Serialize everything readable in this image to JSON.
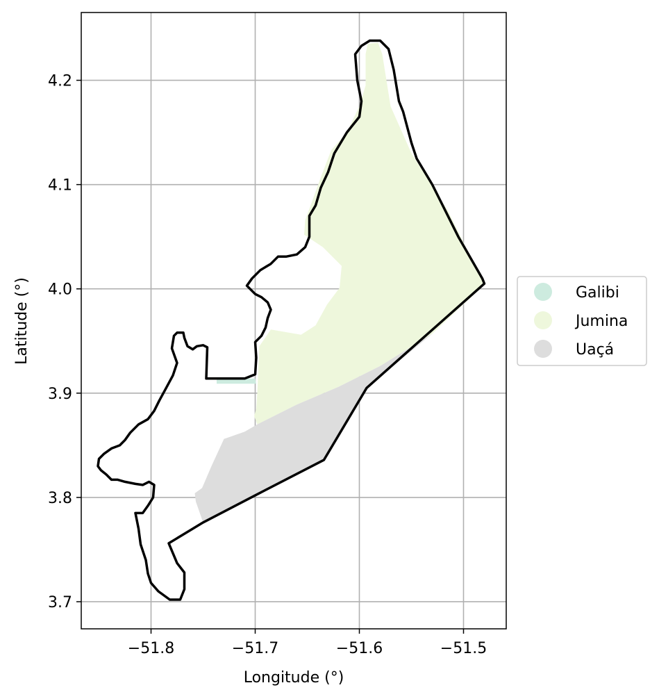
{
  "chart_data": {
    "type": "map",
    "xlabel": "Longitude (°)",
    "ylabel": "Latitude (°)",
    "xlim": [
      -51.867,
      -51.459
    ],
    "ylim": [
      3.674,
      4.265
    ],
    "grid": true,
    "x_ticks": [
      {
        "value": -51.8,
        "label": "−51.8"
      },
      {
        "value": -51.7,
        "label": "−51.7"
      },
      {
        "value": -51.6,
        "label": "−51.6"
      },
      {
        "value": -51.5,
        "label": "−51.5"
      }
    ],
    "y_ticks": [
      {
        "value": 3.7,
        "label": "3.7"
      },
      {
        "value": 3.8,
        "label": "3.8"
      },
      {
        "value": 3.9,
        "label": "3.9"
      },
      {
        "value": 4.0,
        "label": "4.0"
      },
      {
        "value": 4.1,
        "label": "4.1"
      },
      {
        "value": 4.2,
        "label": "4.2"
      }
    ],
    "legend_placement": "right",
    "series": [
      {
        "name": "Galibi",
        "color": "#cdebdf",
        "polygons": [
          [
            [
              -51.737,
              3.914
            ],
            [
              -51.7,
              3.914
            ],
            [
              -51.699,
              3.909
            ],
            [
              -51.737,
              3.909
            ]
          ]
        ]
      },
      {
        "name": "Jumina",
        "color": "#eef7dc",
        "polygons": [
          [
            [
              -51.592,
              4.235
            ],
            [
              -51.594,
              4.225
            ],
            [
              -51.594,
              4.195
            ],
            [
              -51.6,
              4.175
            ],
            [
              -51.612,
              4.15
            ],
            [
              -51.627,
              4.133
            ],
            [
              -51.637,
              4.107
            ],
            [
              -51.645,
              4.085
            ],
            [
              -51.652,
              4.066
            ],
            [
              -51.653,
              4.052
            ],
            [
              -51.635,
              4.04
            ],
            [
              -51.617,
              4.022
            ],
            [
              -51.619,
              4.001
            ],
            [
              -51.631,
              3.985
            ],
            [
              -51.642,
              3.965
            ],
            [
              -51.656,
              3.956
            ],
            [
              -51.685,
              3.961
            ],
            [
              -51.696,
              3.945
            ],
            [
              -51.698,
              3.9
            ],
            [
              -51.699,
              3.885
            ],
            [
              -51.701,
              3.878
            ],
            [
              -51.698,
              3.87
            ],
            [
              -51.66,
              3.889
            ],
            [
              -51.62,
              3.906
            ],
            [
              -51.58,
              3.926
            ],
            [
              -51.53,
              3.957
            ],
            [
              -51.48,
              4.004
            ],
            [
              -51.515,
              4.075
            ],
            [
              -51.55,
              4.13
            ],
            [
              -51.57,
              4.175
            ],
            [
              -51.578,
              4.225
            ],
            [
              -51.582,
              4.236
            ]
          ]
        ]
      },
      {
        "name": "Uaçá",
        "color": "#dddddd",
        "polygons": [
          [
            [
              -51.698,
              3.87
            ],
            [
              -51.66,
              3.889
            ],
            [
              -51.62,
              3.906
            ],
            [
              -51.58,
              3.926
            ],
            [
              -51.53,
              3.957
            ],
            [
              -51.593,
              3.905
            ],
            [
              -51.634,
              3.836
            ],
            [
              -51.7,
              3.802
            ],
            [
              -51.75,
              3.776
            ],
            [
              -51.757,
              3.796
            ],
            [
              -51.758,
              3.804
            ],
            [
              -51.751,
              3.809
            ],
            [
              -51.742,
              3.83
            ],
            [
              -51.73,
              3.856
            ],
            [
              -51.71,
              3.863
            ]
          ]
        ]
      }
    ],
    "boundary": {
      "color": "#000000",
      "path": [
        [
          -51.59,
          4.238
        ],
        [
          -51.58,
          4.238
        ],
        [
          -51.572,
          4.23
        ],
        [
          -51.567,
          4.21
        ],
        [
          -51.562,
          4.18
        ],
        [
          -51.558,
          4.17
        ],
        [
          -51.55,
          4.14
        ],
        [
          -51.545,
          4.125
        ],
        [
          -51.53,
          4.1
        ],
        [
          -51.505,
          4.05
        ],
        [
          -51.482,
          4.01
        ],
        [
          -51.48,
          4.005
        ],
        [
          -51.593,
          3.905
        ],
        [
          -51.634,
          3.836
        ],
        [
          -51.7,
          3.802
        ],
        [
          -51.75,
          3.776
        ],
        [
          -51.783,
          3.756
        ],
        [
          -51.775,
          3.737
        ],
        [
          -51.768,
          3.728
        ],
        [
          -51.768,
          3.712
        ],
        [
          -51.772,
          3.702
        ],
        [
          -51.782,
          3.702
        ],
        [
          -51.793,
          3.71
        ],
        [
          -51.8,
          3.718
        ],
        [
          -51.803,
          3.727
        ],
        [
          -51.805,
          3.74
        ],
        [
          -51.81,
          3.755
        ],
        [
          -51.812,
          3.77
        ],
        [
          -51.815,
          3.785
        ],
        [
          -51.808,
          3.785
        ],
        [
          -51.803,
          3.792
        ],
        [
          -51.798,
          3.8
        ],
        [
          -51.797,
          3.812
        ],
        [
          -51.802,
          3.815
        ],
        [
          -51.808,
          3.812
        ],
        [
          -51.815,
          3.813
        ],
        [
          -51.825,
          3.815
        ],
        [
          -51.832,
          3.817
        ],
        [
          -51.838,
          3.817
        ],
        [
          -51.843,
          3.822
        ],
        [
          -51.848,
          3.826
        ],
        [
          -51.851,
          3.83
        ],
        [
          -51.85,
          3.837
        ],
        [
          -51.845,
          3.842
        ],
        [
          -51.838,
          3.847
        ],
        [
          -51.83,
          3.85
        ],
        [
          -51.825,
          3.855
        ],
        [
          -51.82,
          3.862
        ],
        [
          -51.812,
          3.87
        ],
        [
          -51.803,
          3.875
        ],
        [
          -51.797,
          3.883
        ],
        [
          -51.792,
          3.893
        ],
        [
          -51.786,
          3.904
        ],
        [
          -51.779,
          3.917
        ],
        [
          -51.775,
          3.929
        ],
        [
          -51.78,
          3.943
        ],
        [
          -51.778,
          3.955
        ],
        [
          -51.775,
          3.958
        ],
        [
          -51.769,
          3.958
        ],
        [
          -51.768,
          3.953
        ],
        [
          -51.765,
          3.945
        ],
        [
          -51.76,
          3.942
        ],
        [
          -51.756,
          3.945
        ],
        [
          -51.75,
          3.946
        ],
        [
          -51.746,
          3.944
        ],
        [
          -51.747,
          3.914
        ],
        [
          -51.722,
          3.914
        ],
        [
          -51.71,
          3.914
        ],
        [
          -51.7,
          3.918
        ],
        [
          -51.699,
          3.934
        ],
        [
          -51.7,
          3.949
        ],
        [
          -51.694,
          3.955
        ],
        [
          -51.69,
          3.963
        ],
        [
          -51.688,
          3.972
        ],
        [
          -51.685,
          3.98
        ],
        [
          -51.688,
          3.987
        ],
        [
          -51.694,
          3.992
        ],
        [
          -51.7,
          3.995
        ],
        [
          -51.705,
          4.0
        ],
        [
          -51.708,
          4.003
        ],
        [
          -51.703,
          4.01
        ],
        [
          -51.695,
          4.018
        ],
        [
          -51.685,
          4.024
        ],
        [
          -51.678,
          4.031
        ],
        [
          -51.67,
          4.031
        ],
        [
          -51.66,
          4.033
        ],
        [
          -51.652,
          4.04
        ],
        [
          -51.648,
          4.05
        ],
        [
          -51.648,
          4.07
        ],
        [
          -51.642,
          4.08
        ],
        [
          -51.637,
          4.097
        ],
        [
          -51.63,
          4.112
        ],
        [
          -51.624,
          4.13
        ],
        [
          -51.612,
          4.15
        ],
        [
          -51.6,
          4.165
        ],
        [
          -51.598,
          4.18
        ],
        [
          -51.6,
          4.19
        ],
        [
          -51.602,
          4.2
        ],
        [
          -51.604,
          4.225
        ],
        [
          -51.598,
          4.233
        ],
        [
          -51.59,
          4.238
        ]
      ]
    }
  }
}
